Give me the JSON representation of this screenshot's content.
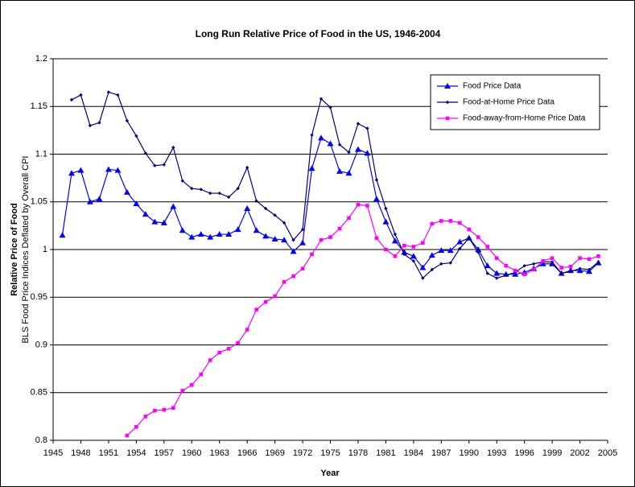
{
  "chart_data": {
    "type": "line",
    "title": "Long Run Relative Price of Food in the US, 1946-2004",
    "xlabel": "Year",
    "ylabel": "Relative Price of Food",
    "ylabel_sub": "BLS Food Price Indices Deflated by Overall CPI",
    "x": [
      1946,
      1947,
      1948,
      1949,
      1950,
      1951,
      1952,
      1953,
      1954,
      1955,
      1956,
      1957,
      1958,
      1959,
      1960,
      1961,
      1962,
      1963,
      1964,
      1965,
      1966,
      1967,
      1968,
      1969,
      1970,
      1971,
      1972,
      1973,
      1974,
      1975,
      1976,
      1977,
      1978,
      1979,
      1980,
      1981,
      1982,
      1983,
      1984,
      1985,
      1986,
      1987,
      1988,
      1989,
      1990,
      1991,
      1992,
      1993,
      1994,
      1995,
      1996,
      1997,
      1998,
      1999,
      2000,
      2001,
      2002,
      2003,
      2004
    ],
    "xlim": [
      1945,
      2005
    ],
    "xticks": [
      1945,
      1948,
      1951,
      1954,
      1957,
      1960,
      1963,
      1966,
      1969,
      1972,
      1975,
      1978,
      1981,
      1984,
      1987,
      1990,
      1993,
      1996,
      1999,
      2002,
      2005
    ],
    "ylim": [
      0.8,
      1.2
    ],
    "yticks": [
      0.8,
      0.85,
      0.9,
      0.95,
      1,
      1.05,
      1.1,
      1.15,
      1.2
    ],
    "grid": true,
    "legend": "top-right",
    "series": [
      {
        "name": "Food Price Data",
        "color": "#0000ff",
        "marker": "triangle",
        "values": [
          1.015,
          1.08,
          1.083,
          1.05,
          1.053,
          1.084,
          1.083,
          1.06,
          1.048,
          1.037,
          1.029,
          1.028,
          1.045,
          1.02,
          1.013,
          1.016,
          1.013,
          1.016,
          1.016,
          1.021,
          1.043,
          1.02,
          1.014,
          1.011,
          1.01,
          0.998,
          1.007,
          1.085,
          1.117,
          1.111,
          1.082,
          1.08,
          1.105,
          1.101,
          1.053,
          1.029,
          1.009,
          0.997,
          0.993,
          0.981,
          0.994,
          0.999,
          0.999,
          1.008,
          1.012,
          1.0,
          0.983,
          0.975,
          0.974,
          0.974,
          0.976,
          0.98,
          0.985,
          0.985,
          0.975,
          0.978,
          0.978,
          0.977,
          0.986
        ]
      },
      {
        "name": "Food-at-Home Price Data",
        "color": "#000080",
        "marker": "diamond",
        "values": [
          null,
          1.157,
          1.162,
          1.13,
          1.133,
          1.165,
          1.162,
          1.135,
          1.119,
          1.101,
          1.088,
          1.089,
          1.107,
          1.072,
          1.064,
          1.063,
          1.059,
          1.059,
          1.055,
          1.064,
          1.086,
          1.051,
          1.043,
          1.036,
          1.028,
          1.01,
          1.021,
          1.12,
          1.158,
          1.149,
          1.11,
          1.102,
          1.132,
          1.127,
          1.073,
          1.043,
          1.016,
          0.995,
          0.988,
          0.97,
          0.979,
          0.985,
          0.986,
          1.001,
          1.012,
          0.997,
          0.975,
          0.97,
          0.973,
          0.976,
          0.983,
          0.985,
          0.987,
          0.987,
          0.975,
          0.977,
          0.98,
          0.979,
          0.987
        ]
      },
      {
        "name": "Food-away-from-Home Price Data",
        "color": "#ff00ff",
        "marker": "square",
        "values": [
          null,
          null,
          null,
          null,
          null,
          null,
          null,
          0.805,
          0.814,
          0.825,
          0.831,
          0.832,
          0.834,
          0.852,
          0.858,
          0.869,
          0.884,
          0.892,
          0.896,
          0.902,
          0.916,
          0.937,
          0.945,
          0.951,
          0.966,
          0.972,
          0.98,
          0.995,
          1.01,
          1.013,
          1.022,
          1.033,
          1.047,
          1.046,
          1.012,
          1.0,
          0.993,
          1.004,
          1.003,
          1.007,
          1.027,
          1.03,
          1.03,
          1.028,
          1.021,
          1.013,
          1.003,
          0.991,
          0.983,
          0.978,
          0.974,
          0.979,
          0.988,
          0.991,
          0.981,
          0.982,
          0.991,
          0.99,
          0.993
        ]
      }
    ]
  }
}
